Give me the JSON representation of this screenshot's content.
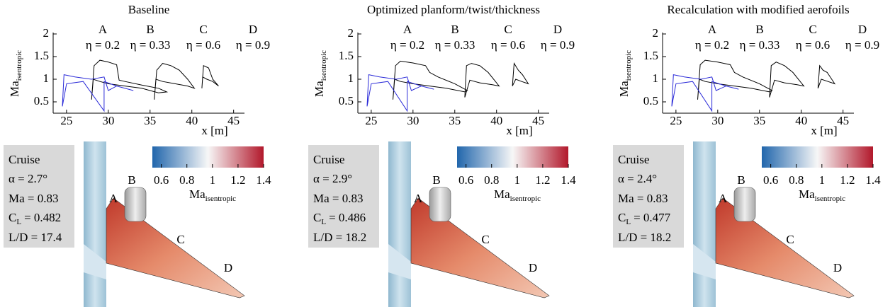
{
  "chart_data": [
    {
      "type": "line",
      "title": "Baseline",
      "x_label": "x [m]",
      "y_label": "Ma",
      "y_label_sub": "isentropic",
      "xlim": [
        23.4,
        46.3
      ],
      "ylim": [
        0.25,
        2
      ],
      "xticks": [
        25,
        30,
        35,
        40,
        45
      ],
      "yticks": [
        0.5,
        1,
        1.5,
        2
      ],
      "series": [
        {
          "name": "A",
          "eta": "η = 0.2",
          "color": "#000000",
          "x": [
            28,
            28.3,
            29,
            30,
            31,
            31.3,
            32,
            34,
            36,
            37,
            36,
            34,
            32,
            30,
            29,
            28.2,
            28
          ],
          "values": [
            0.55,
            1.3,
            1.42,
            1.38,
            1.32,
            0.98,
            0.95,
            0.87,
            0.8,
            0.72,
            0.7,
            0.8,
            0.85,
            0.9,
            0.95,
            1.0,
            0.55
          ]
        },
        {
          "name": "B",
          "eta": "η = 0.33",
          "color": "#2a2ad8",
          "x": [
            24.5,
            24.7,
            26,
            28,
            29.5,
            30,
            31,
            33,
            31,
            29.5,
            29.5,
            27,
            25,
            24.5
          ],
          "values": [
            0.4,
            1.1,
            1.05,
            1.0,
            1.05,
            0.75,
            0.85,
            0.75,
            0.85,
            0.95,
            0.3,
            0.95,
            0.9,
            0.4
          ]
        },
        {
          "name": "C",
          "eta": "η = 0.6",
          "color": "#000000",
          "x": [
            35.5,
            35.8,
            36.5,
            37.5,
            38.5,
            39.5,
            40.3,
            39.5,
            38,
            36.5,
            35.7,
            35.5
          ],
          "values": [
            0.55,
            1.2,
            1.35,
            1.3,
            1.2,
            1.0,
            0.8,
            0.85,
            0.9,
            0.95,
            1.0,
            0.55
          ]
        },
        {
          "name": "D",
          "eta": "η = 0.9",
          "color": "#000000",
          "x": [
            41.2,
            41.4,
            42,
            42.5,
            43.2,
            42.5,
            41.8,
            41.3,
            41.2
          ],
          "values": [
            0.8,
            1.3,
            1.25,
            1.0,
            0.85,
            0.95,
            1.0,
            1.05,
            0.8
          ]
        }
      ]
    },
    {
      "type": "line",
      "title": "Optimized planform/twist/thickness",
      "x_label": "x [m]",
      "y_label": "Ma",
      "y_label_sub": "isentropic",
      "xlim": [
        23.4,
        46.3
      ],
      "ylim": [
        0.25,
        2
      ],
      "xticks": [
        25,
        30,
        35,
        40,
        45
      ],
      "yticks": [
        0.5,
        1,
        1.5,
        2
      ],
      "series": [
        {
          "name": "A",
          "eta": "η = 0.2",
          "color": "#000000",
          "x": [
            27.6,
            27.9,
            28.5,
            30,
            31.5,
            32,
            33,
            35,
            36.5,
            36.2,
            34,
            32,
            30,
            28.5,
            27.8,
            27.6
          ],
          "values": [
            0.55,
            1.3,
            1.4,
            1.36,
            1.3,
            1.15,
            1.05,
            0.9,
            0.75,
            0.72,
            0.8,
            0.85,
            0.9,
            0.95,
            1.0,
            0.55
          ]
        },
        {
          "name": "B",
          "eta": "η = 0.33",
          "color": "#2a2ad8",
          "x": [
            24.5,
            24.7,
            26,
            28,
            29.3,
            29.8,
            31,
            32.5,
            31,
            29.3,
            29.3,
            27,
            25,
            24.5
          ],
          "values": [
            0.4,
            1.1,
            1.05,
            1.0,
            1.05,
            0.75,
            0.85,
            0.78,
            0.85,
            0.95,
            0.3,
            0.95,
            0.9,
            0.4
          ]
        },
        {
          "name": "C",
          "eta": "η = 0.6",
          "color": "#000000",
          "x": [
            36.2,
            36.4,
            37,
            38,
            39,
            40.3,
            39.5,
            38,
            36.8,
            36.2
          ],
          "values": [
            0.6,
            1.3,
            1.35,
            1.3,
            1.15,
            0.85,
            0.88,
            0.92,
            0.98,
            0.6
          ]
        },
        {
          "name": "D",
          "eta": "η = 0.9",
          "color": "#000000",
          "x": [
            41.9,
            42.1,
            42.6,
            43.1,
            43.8,
            43,
            42.3,
            41.9
          ],
          "values": [
            0.85,
            1.35,
            1.2,
            1.1,
            0.9,
            0.95,
            1.0,
            0.85
          ]
        }
      ]
    },
    {
      "type": "line",
      "title": "Recalculation with modified aerofoils",
      "x_label": "x [m]",
      "y_label": "Ma",
      "y_label_sub": "isentropic",
      "xlim": [
        23.4,
        46.3
      ],
      "ylim": [
        0.25,
        2
      ],
      "xticks": [
        25,
        30,
        35,
        40,
        45
      ],
      "yticks": [
        0.5,
        1,
        1.5,
        2
      ],
      "series": [
        {
          "name": "A",
          "eta": "η = 0.2",
          "color": "#000000",
          "x": [
            27.6,
            27.9,
            28.5,
            30,
            31.5,
            32,
            33,
            35,
            36.5,
            36.2,
            34,
            32,
            30,
            28.5,
            27.8,
            27.6
          ],
          "values": [
            0.55,
            1.32,
            1.42,
            1.38,
            1.32,
            1.15,
            1.05,
            0.9,
            0.75,
            0.72,
            0.8,
            0.85,
            0.9,
            0.95,
            1.0,
            0.55
          ]
        },
        {
          "name": "B",
          "eta": "η = 0.33",
          "color": "#2a2ad8",
          "x": [
            24.5,
            24.7,
            26,
            28,
            29.3,
            29.8,
            31,
            32.5,
            31,
            29.3,
            29.3,
            27,
            25,
            24.5
          ],
          "values": [
            0.4,
            1.1,
            1.05,
            1.0,
            1.05,
            0.75,
            0.85,
            0.78,
            0.85,
            0.95,
            0.3,
            0.95,
            0.9,
            0.4
          ]
        },
        {
          "name": "C",
          "eta": "η = 0.6",
          "color": "#000000",
          "x": [
            36.2,
            36.4,
            37,
            38,
            39,
            40.3,
            39.5,
            38,
            36.8,
            36.2
          ],
          "values": [
            0.6,
            1.3,
            1.38,
            1.3,
            1.15,
            0.85,
            0.88,
            0.92,
            0.98,
            0.6
          ]
        },
        {
          "name": "D",
          "eta": "η = 0.9",
          "color": "#000000",
          "x": [
            42,
            42.2,
            42.6,
            43.1,
            44,
            43.2,
            42.4,
            42
          ],
          "values": [
            0.8,
            1.3,
            1.2,
            1.15,
            0.9,
            0.95,
            1.0,
            0.8
          ]
        }
      ]
    }
  ],
  "panels": [
    {
      "cruise": {
        "title": "Cruise",
        "alpha": "α = 2.7°",
        "ma": "Ma = 0.83",
        "cl": {
          "symbol": "C",
          "sub": "L",
          "value": "= 0.482"
        },
        "ld": "L/D = 17.4"
      }
    },
    {
      "cruise": {
        "title": "Cruise",
        "alpha": "α = 2.9°",
        "ma": "Ma = 0.83",
        "cl": {
          "symbol": "C",
          "sub": "L",
          "value": "= 0.486"
        },
        "ld": "L/D = 18.2"
      }
    },
    {
      "cruise": {
        "title": "Cruise",
        "alpha": "α = 2.4°",
        "ma": "Ma = 0.83",
        "cl": {
          "symbol": "C",
          "sub": "L",
          "value": "= 0.477"
        },
        "ld": "L/D = 18.2"
      }
    }
  ],
  "colorbar": {
    "lim": [
      0.53,
      1.4
    ],
    "ticks": [
      0.6,
      0.8,
      1,
      1.2,
      1.4
    ],
    "label": "Ma",
    "label_sub": "isentropic",
    "colors": [
      "#2166ac",
      "#f7f7f7",
      "#b2182b"
    ]
  }
}
